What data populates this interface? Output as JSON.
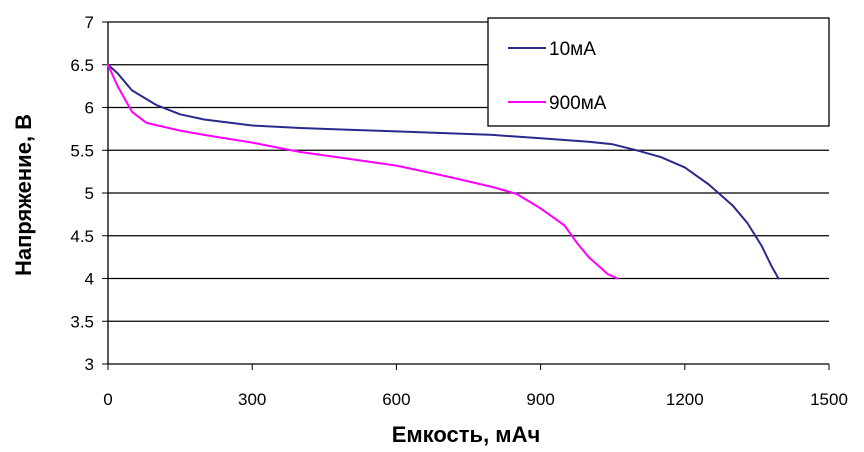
{
  "chart_data": {
    "type": "line",
    "title": "",
    "xlabel": "Емкость, мАч",
    "ylabel": "Напряжение, В",
    "xlim": [
      0,
      1500
    ],
    "ylim": [
      3,
      7
    ],
    "x_ticks": [
      "0",
      "300",
      "600",
      "900",
      "1200",
      "1500"
    ],
    "y_ticks": [
      "3",
      "3.5",
      "4",
      "4.5",
      "5",
      "5.5",
      "6",
      "6.5",
      "7"
    ],
    "grid": "horizontal",
    "legend_position": "top-right",
    "series": [
      {
        "name": "10мА",
        "color": "#2a2a8a",
        "points": [
          [
            0,
            6.5
          ],
          [
            20,
            6.4
          ],
          [
            50,
            6.2
          ],
          [
            100,
            6.03
          ],
          [
            150,
            5.92
          ],
          [
            200,
            5.86
          ],
          [
            300,
            5.79
          ],
          [
            400,
            5.76
          ],
          [
            500,
            5.74
          ],
          [
            600,
            5.72
          ],
          [
            700,
            5.7
          ],
          [
            800,
            5.68
          ],
          [
            900,
            5.64
          ],
          [
            1000,
            5.6
          ],
          [
            1050,
            5.57
          ],
          [
            1100,
            5.5
          ],
          [
            1150,
            5.42
          ],
          [
            1200,
            5.3
          ],
          [
            1250,
            5.1
          ],
          [
            1300,
            4.85
          ],
          [
            1330,
            4.65
          ],
          [
            1360,
            4.38
          ],
          [
            1380,
            4.15
          ],
          [
            1395,
            4.0
          ]
        ]
      },
      {
        "name": "900мА",
        "color": "#ff00ff",
        "points": [
          [
            0,
            6.5
          ],
          [
            20,
            6.25
          ],
          [
            50,
            5.95
          ],
          [
            80,
            5.82
          ],
          [
            150,
            5.73
          ],
          [
            200,
            5.68
          ],
          [
            300,
            5.59
          ],
          [
            400,
            5.48
          ],
          [
            500,
            5.4
          ],
          [
            600,
            5.32
          ],
          [
            700,
            5.2
          ],
          [
            800,
            5.07
          ],
          [
            850,
            4.99
          ],
          [
            900,
            4.82
          ],
          [
            950,
            4.62
          ],
          [
            975,
            4.42
          ],
          [
            1000,
            4.25
          ],
          [
            1040,
            4.05
          ],
          [
            1060,
            4.0
          ]
        ]
      }
    ]
  }
}
